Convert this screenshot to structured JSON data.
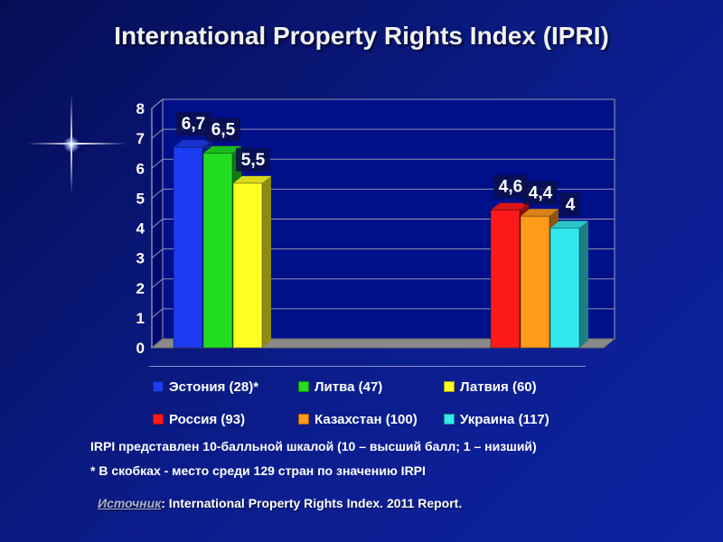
{
  "title": "International Property Rights Index (IPRI)",
  "chart_data": {
    "type": "bar",
    "title": "International Property Rights Index (IPRI)",
    "ylim": [
      0,
      8
    ],
    "yticks": [
      "0",
      "1",
      "2",
      "3",
      "4",
      "5",
      "6",
      "7",
      "8"
    ],
    "series": [
      {
        "name": "Эстония (28)*",
        "value": 6.7,
        "label": "6,7",
        "color": "#1b3cf0",
        "group": 0
      },
      {
        "name": "Литва (47)",
        "value": 6.5,
        "label": "6,5",
        "color": "#22dd22",
        "group": 0
      },
      {
        "name": "Латвия (60)",
        "value": 5.5,
        "label": "5,5",
        "color": "#ffff22",
        "group": 0
      },
      {
        "name": "Россия (93)",
        "value": 4.6,
        "label": "4,6",
        "color": "#ff1a1a",
        "group": 1
      },
      {
        "name": "Казахстан (100)",
        "value": 4.4,
        "label": "4,4",
        "color": "#ff9a1a",
        "group": 1
      },
      {
        "name": "Украина (117)",
        "value": 4.0,
        "label": "4",
        "color": "#33e8ee",
        "group": 1
      }
    ],
    "legend_position": "bottom",
    "grid": true
  },
  "notes": {
    "scale": "IRPI представлен 10-балльной шкалой (10 – высший балл; 1 – низший)",
    "rank": "* В скобках - место среди 129 стран по значению IRPI"
  },
  "source": {
    "label": "Источник",
    "text": ": International Property Rights Index. 2011 Report."
  }
}
